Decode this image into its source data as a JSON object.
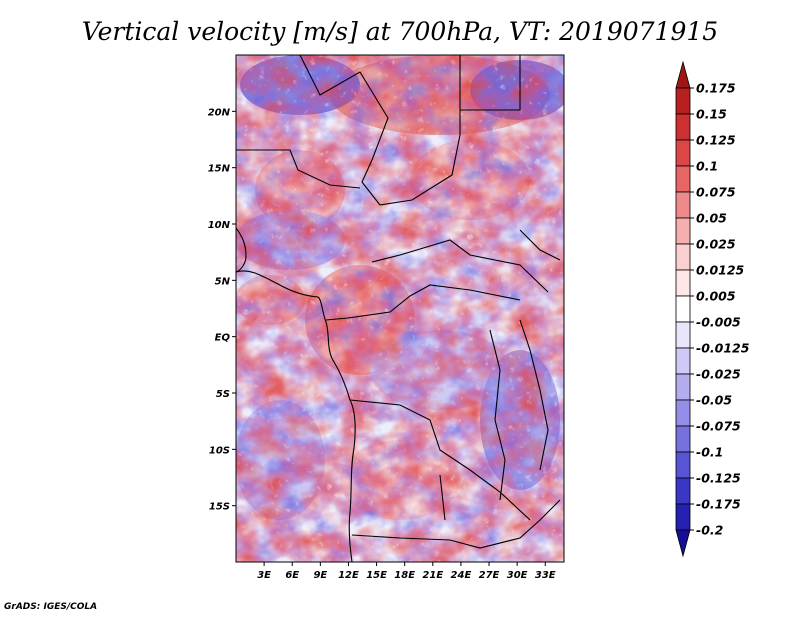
{
  "title": "Vertical velocity [m/s] at 700hPa, VT: 2019071915",
  "credit": "GrADS: IGES/COLA",
  "map": {
    "lat_ticks": [
      "20N",
      "15N",
      "10N",
      "5N",
      "EQ",
      "5S",
      "10S",
      "15S"
    ],
    "lat_values": [
      20,
      15,
      10,
      5,
      0,
      -5,
      -10,
      -15
    ],
    "lon_ticks": [
      "3E",
      "6E",
      "9E",
      "12E",
      "15E",
      "18E",
      "21E",
      "24E",
      "27E",
      "30E",
      "33E"
    ],
    "lon_values": [
      3,
      6,
      9,
      12,
      15,
      18,
      21,
      24,
      27,
      30,
      33
    ],
    "lon_range": [
      0,
      35
    ],
    "lat_range": [
      -20,
      25
    ]
  },
  "colorbar": {
    "labels": [
      "0.175",
      "0.15",
      "0.125",
      "0.1",
      "0.075",
      "0.05",
      "0.025",
      "0.0125",
      "0.005",
      "-0.005",
      "-0.0125",
      "-0.025",
      "-0.05",
      "-0.075",
      "-0.1",
      "-0.125",
      "-0.175",
      "-0.2"
    ],
    "colors": [
      "#a01616",
      "#b82020",
      "#cc3030",
      "#dc4646",
      "#e66666",
      "#ef8a8a",
      "#f6aeae",
      "#fbcfcf",
      "#fde7e7",
      "#ffffff",
      "#e9e6fb",
      "#cfcaf5",
      "#b3adee",
      "#958ee6",
      "#7771de",
      "#5954d3",
      "#3b37c5",
      "#2520b0",
      "#150f98"
    ]
  }
}
